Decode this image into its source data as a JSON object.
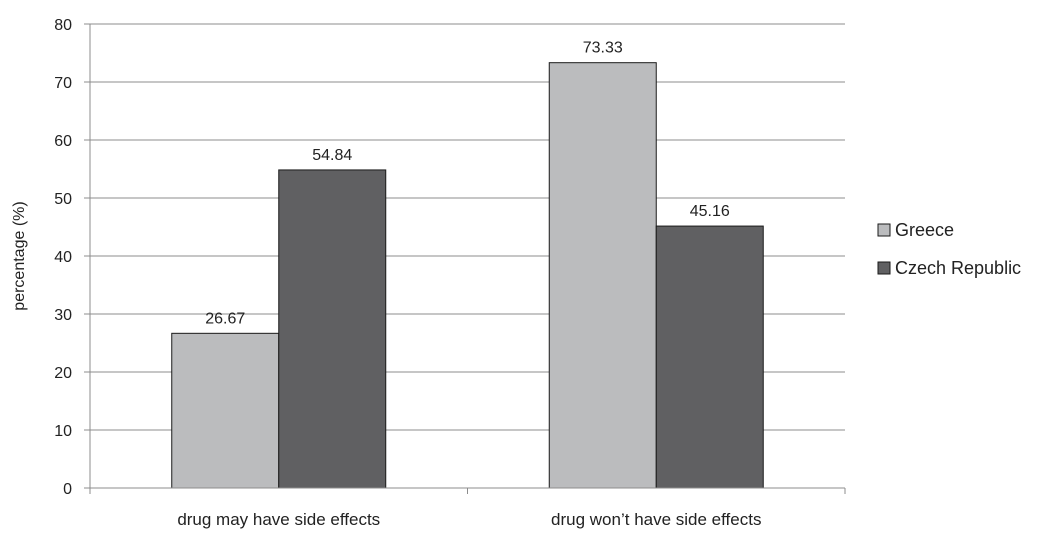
{
  "chart_data": {
    "type": "bar",
    "title": "",
    "xlabel": "",
    "ylabel": "percentage (%)",
    "ylim": [
      0,
      80
    ],
    "yticks": [
      0,
      10,
      20,
      30,
      40,
      50,
      60,
      70,
      80
    ],
    "grid": true,
    "legend_position": "right",
    "categories": [
      "drug may have side effects",
      "drug won’t have side effects"
    ],
    "series": [
      {
        "name": "Greece",
        "color": "#bbbcbe",
        "values": [
          26.67,
          73.33
        ],
        "labels": [
          "26.67",
          "73.33"
        ]
      },
      {
        "name": "Czech Republic",
        "color": "#606062",
        "values": [
          54.84,
          45.16
        ],
        "labels": [
          "54.84",
          "45.16"
        ]
      }
    ]
  }
}
